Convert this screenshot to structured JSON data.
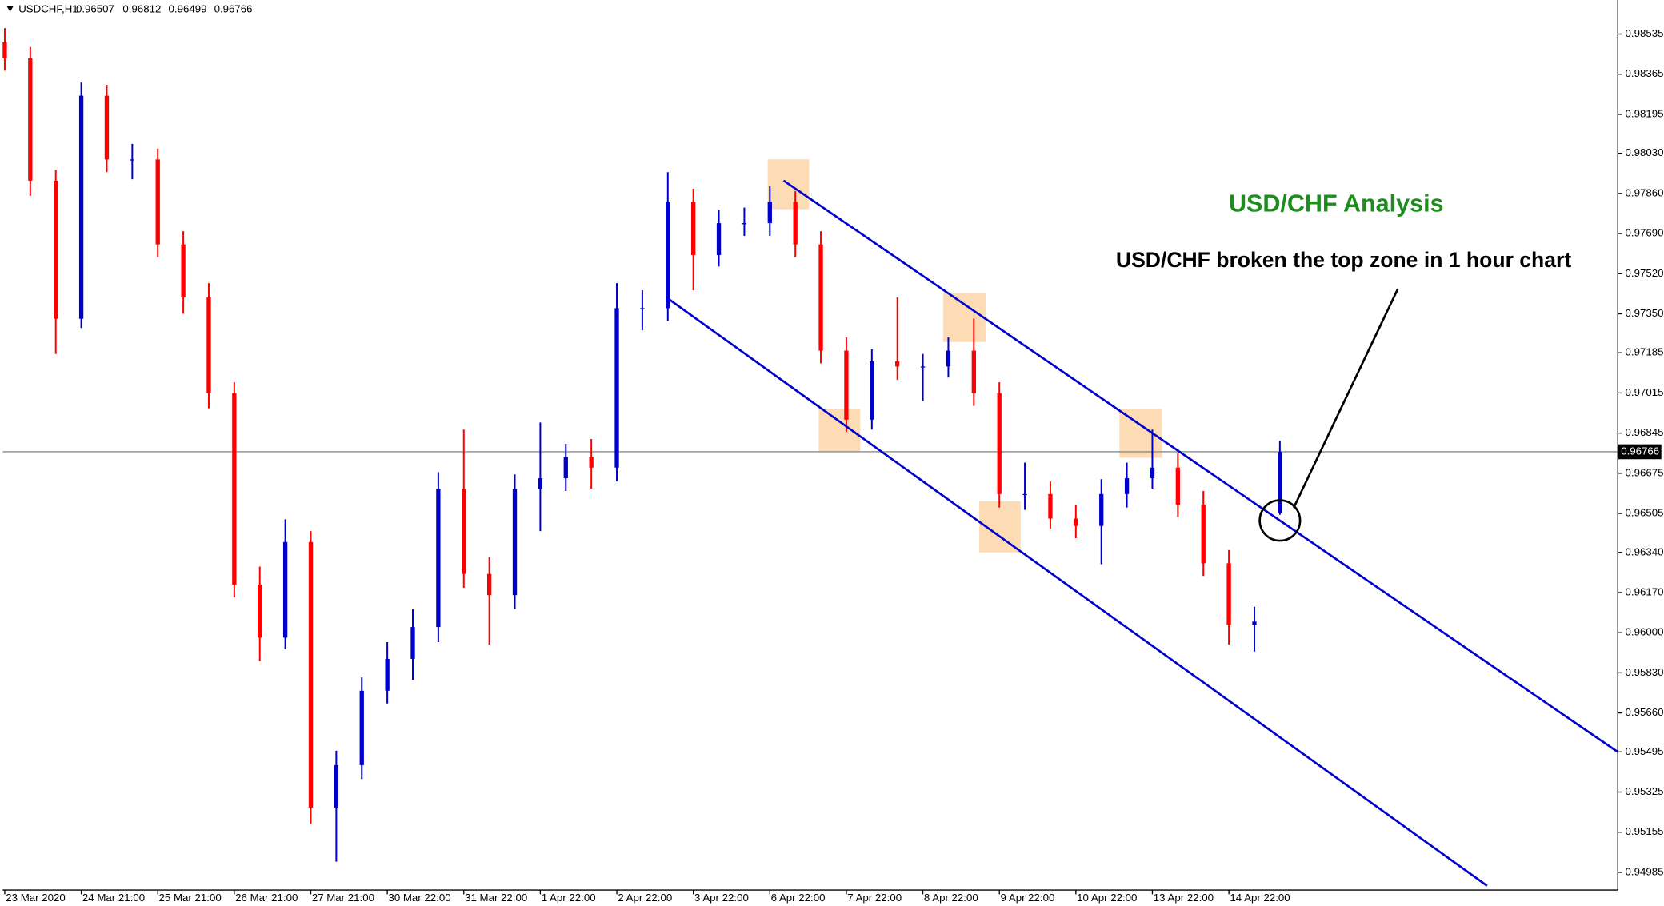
{
  "header": {
    "symbol": "USDCHF,H1",
    "ohlc": [
      0.96507,
      0.96812,
      0.96499,
      0.96766
    ]
  },
  "chart_data": {
    "type": "candlestick",
    "title": "USD/CHF Analysis",
    "annotation": "USD/CHF broken the top zone in 1 hour chart",
    "categories": [
      "23 Mar 2020",
      null,
      null,
      "24 Mar 21:00",
      null,
      null,
      "25 Mar 21:00",
      null,
      null,
      "26 Mar 21:00",
      null,
      null,
      "27 Mar 21:00",
      null,
      null,
      "30 Mar 22:00",
      null,
      null,
      "31 Mar 22:00",
      null,
      null,
      "1 Apr 22:00",
      null,
      null,
      "2 Apr 22:00",
      null,
      null,
      "3 Apr 22:00",
      null,
      null,
      "6 Apr 22:00",
      null,
      null,
      "7 Apr 22:00",
      null,
      null,
      "8 Apr 22:00",
      null,
      null,
      "9 Apr 22:00",
      null,
      null,
      "10 Apr 22:00",
      null,
      null,
      "13 Apr 22:00",
      null,
      null,
      "14 Apr 22:00",
      null,
      null
    ],
    "open": [
      0.985,
      0.98432,
      0.97914,
      0.97329,
      0.98274,
      0.98004,
      0.98004,
      0.97644,
      0.97419,
      0.97014,
      0.96204,
      0.95979,
      0.96384,
      0.95259,
      0.95439,
      0.95754,
      0.95889,
      0.96024,
      0.96609,
      0.96249,
      0.96159,
      0.96609,
      0.96654,
      0.96744,
      0.96699,
      0.97374,
      0.97374,
      0.97824,
      0.97599,
      0.97734,
      0.97734,
      0.97824,
      0.97644,
      0.97194,
      0.96902,
      0.97149,
      0.97127,
      0.97127,
      0.97194,
      0.97014,
      0.96587,
      0.96587,
      0.96483,
      0.96452,
      0.96587,
      0.96654,
      0.96699,
      0.96542,
      0.96294,
      0.96033,
      0.96507
    ],
    "high": [
      0.9856,
      0.9848,
      0.9796,
      0.9833,
      0.9832,
      0.9807,
      0.9805,
      0.977,
      0.9748,
      0.9706,
      0.9628,
      0.9648,
      0.9643,
      0.955,
      0.9581,
      0.9596,
      0.961,
      0.9668,
      0.9686,
      0.9632,
      0.9667,
      0.9689,
      0.968,
      0.9682,
      0.9748,
      0.9745,
      0.9795,
      0.9788,
      0.9779,
      0.978,
      0.9789,
      0.9787,
      0.977,
      0.9725,
      0.972,
      0.9742,
      0.9718,
      0.9725,
      0.9733,
      0.9706,
      0.9672,
      0.9664,
      0.9654,
      0.9665,
      0.9672,
      0.9686,
      0.9676,
      0.966,
      0.9635,
      0.9611,
      0.96812
    ],
    "low": [
      0.9838,
      0.9785,
      0.9718,
      0.9729,
      0.9795,
      0.9792,
      0.9759,
      0.9735,
      0.9695,
      0.9615,
      0.9588,
      0.9593,
      0.9519,
      0.9503,
      0.9538,
      0.957,
      0.958,
      0.9596,
      0.9619,
      0.9595,
      0.961,
      0.9643,
      0.966,
      0.9661,
      0.9664,
      0.9728,
      0.9732,
      0.9745,
      0.9755,
      0.9768,
      0.9768,
      0.9759,
      0.9714,
      0.9685,
      0.9686,
      0.9707,
      0.9698,
      0.9708,
      0.9696,
      0.9653,
      0.9652,
      0.9644,
      0.964,
      0.9629,
      0.9653,
      0.9661,
      0.9649,
      0.9624,
      0.9595,
      0.9592,
      0.96499
    ],
    "close": [
      0.98432,
      0.97914,
      0.97329,
      0.98274,
      0.98004,
      0.98004,
      0.97644,
      0.97419,
      0.97014,
      0.96204,
      0.95979,
      0.96384,
      0.95259,
      0.95439,
      0.95754,
      0.95889,
      0.96024,
      0.96609,
      0.96249,
      0.96159,
      0.96609,
      0.96654,
      0.96744,
      0.96699,
      0.97374,
      0.97374,
      0.97824,
      0.97599,
      0.97734,
      0.97734,
      0.97824,
      0.97644,
      0.97194,
      0.96902,
      0.97149,
      0.97127,
      0.97127,
      0.97194,
      0.97014,
      0.96587,
      0.96587,
      0.96483,
      0.96452,
      0.96587,
      0.96654,
      0.96699,
      0.96542,
      0.96294,
      0.96033,
      0.96047,
      0.96766
    ],
    "up_color": "#0000cc",
    "down_color": "#ff0000",
    "last_price": 0.96766,
    "ylim": [
      0.9491,
      0.98679
    ],
    "yticks": [
      0.98535,
      0.98365,
      0.98195,
      {
        "value": 0.9803,
        "label": "0.98030"
      },
      {
        "value": 0.9786,
        "label": "0.97860"
      },
      {
        "value": 0.9769,
        "label": "0.97690"
      },
      {
        "value": 0.9752,
        "label": "0.97520"
      },
      {
        "value": 0.9735,
        "label": "0.97350"
      },
      0.97185,
      0.97015,
      0.96845,
      0.96675,
      0.96505,
      {
        "value": 0.9634,
        "label": "0.96340"
      },
      {
        "value": 0.9617,
        "label": "0.96170"
      },
      {
        "value": 0.96,
        "label": "0.96000"
      },
      {
        "value": 0.9583,
        "label": "0.95830"
      },
      {
        "value": 0.9566,
        "label": "0.95660"
      },
      0.95495,
      0.95325,
      0.95155,
      0.94985
    ],
    "grid": false
  }
}
